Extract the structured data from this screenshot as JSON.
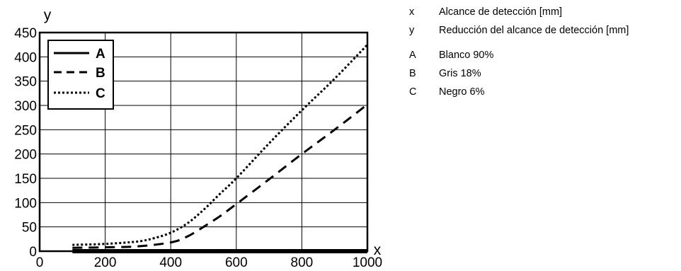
{
  "chart_data": {
    "type": "line",
    "xlabel": "x",
    "ylabel": "y",
    "xlim": [
      0,
      1000
    ],
    "ylim": [
      0,
      450
    ],
    "x_ticks": [
      "0",
      "200",
      "400",
      "600",
      "800",
      "1000"
    ],
    "y_ticks": [
      "0",
      "50",
      "100",
      "150",
      "200",
      "250",
      "300",
      "350",
      "400",
      "450"
    ],
    "grid": true,
    "legend_position": "top-left",
    "series": [
      {
        "name": "A",
        "style": "solid",
        "color": "#000000",
        "x": [
          100,
          200,
          300,
          400,
          500,
          600,
          700,
          800,
          900,
          1000
        ],
        "y": [
          0,
          0,
          0,
          0,
          0,
          0,
          0,
          0,
          0,
          0
        ]
      },
      {
        "name": "B",
        "style": "dashed",
        "color": "#000000",
        "x": [
          100,
          200,
          300,
          400,
          450,
          500,
          550,
          600,
          700,
          800,
          900,
          1000
        ],
        "y": [
          7,
          8,
          10,
          18,
          30,
          50,
          72,
          97,
          148,
          200,
          250,
          302
        ]
      },
      {
        "name": "C",
        "style": "dotted",
        "color": "#000000",
        "x": [
          100,
          200,
          300,
          350,
          400,
          450,
          500,
          550,
          600,
          700,
          800,
          900,
          1000
        ],
        "y": [
          13,
          15,
          20,
          27,
          38,
          57,
          85,
          118,
          150,
          222,
          290,
          355,
          425
        ]
      }
    ]
  },
  "key": [
    {
      "letter": "x",
      "text": "Alcance de detección [mm]"
    },
    {
      "letter": "y",
      "text": "Reducción del alcance de detección [mm]"
    },
    {
      "letter": "A",
      "text": "Blanco 90%"
    },
    {
      "letter": "B",
      "text": "Gris 18%"
    },
    {
      "letter": "C",
      "text": "Negro 6%"
    }
  ]
}
